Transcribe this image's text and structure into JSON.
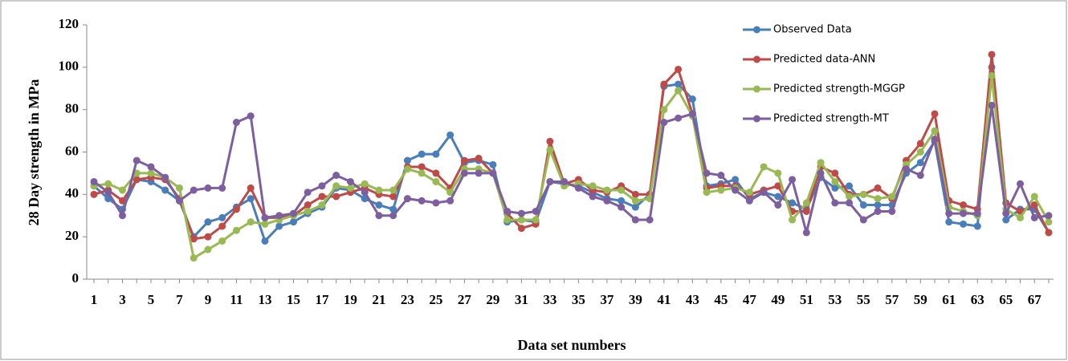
{
  "chart_data": {
    "type": "line",
    "y_label": "28 Day strength in MPa",
    "x_label": "Data set numbers",
    "categories": [
      1,
      null,
      3,
      null,
      5,
      null,
      7,
      null,
      9,
      null,
      11,
      null,
      13,
      null,
      15,
      null,
      17,
      null,
      19,
      null,
      21,
      null,
      23,
      null,
      25,
      null,
      27,
      null,
      29,
      null,
      31,
      null,
      33,
      null,
      35,
      null,
      37,
      null,
      39,
      null,
      41,
      null,
      43,
      null,
      45,
      null,
      47,
      null,
      49,
      null,
      51,
      null,
      53,
      null,
      55,
      null,
      57,
      null,
      59,
      null,
      61,
      null,
      63,
      null,
      65,
      null,
      67,
      null
    ],
    "ylim": [
      0,
      120
    ],
    "yticks": [
      0,
      20,
      40,
      60,
      80,
      100,
      120
    ],
    "series": [
      {
        "name": "Observed Data",
        "color": "#4a7ebb",
        "values": [
          44,
          38,
          33,
          47,
          46,
          42,
          37,
          20,
          27,
          29,
          34,
          38,
          18,
          25,
          27,
          31,
          34,
          43,
          42,
          38,
          35,
          33,
          56,
          59,
          59,
          68,
          55,
          56,
          54,
          27,
          28,
          27,
          46,
          45,
          44,
          41,
          38,
          37,
          34,
          40,
          91,
          92,
          85,
          44,
          45,
          47,
          38,
          41,
          39,
          36,
          33,
          48,
          43,
          44,
          35,
          35,
          35,
          50,
          55,
          65,
          27,
          26,
          25,
          100,
          28,
          33,
          33,
          22
        ]
      },
      {
        "name": "Predicted data-ANN",
        "color": "#be4b48",
        "values": [
          40,
          42,
          37,
          47,
          48,
          47,
          38,
          19,
          20,
          25,
          33,
          43,
          29,
          29,
          30,
          35,
          39,
          39,
          41,
          43,
          40,
          39,
          53,
          53,
          50,
          43,
          56,
          57,
          50,
          31,
          24,
          26,
          65,
          45,
          47,
          42,
          41,
          44,
          40,
          40,
          92,
          99,
          78,
          43,
          44,
          44,
          40,
          42,
          44,
          32,
          32,
          53,
          50,
          40,
          40,
          43,
          38,
          56,
          64,
          78,
          37,
          35,
          33,
          106,
          36,
          32,
          35,
          22
        ]
      },
      {
        "name": "Predicted strength-MGGP",
        "color": "#98b954",
        "values": [
          44,
          45,
          42,
          50,
          50,
          48,
          43,
          10,
          14,
          18,
          23,
          27,
          26,
          28,
          30,
          32,
          35,
          44,
          43,
          45,
          42,
          42,
          52,
          50,
          46,
          41,
          52,
          52,
          50,
          28,
          28,
          28,
          61,
          44,
          45,
          44,
          42,
          42,
          37,
          38,
          80,
          89,
          77,
          41,
          42,
          43,
          41,
          53,
          50,
          28,
          36,
          55,
          46,
          39,
          40,
          38,
          39,
          54,
          60,
          70,
          34,
          32,
          30,
          96,
          33,
          29,
          39,
          27
        ]
      },
      {
        "name": "Predicted strength-MT",
        "color": "#7d5fa0",
        "values": [
          46,
          41,
          30,
          56,
          53,
          48,
          37,
          42,
          43,
          43,
          74,
          77,
          29,
          30,
          31,
          41,
          44,
          49,
          46,
          41,
          30,
          30,
          38,
          37,
          36,
          37,
          50,
          50,
          50,
          32,
          31,
          32,
          46,
          46,
          43,
          39,
          37,
          34,
          28,
          28,
          74,
          76,
          78,
          50,
          49,
          42,
          37,
          41,
          35,
          47,
          22,
          50,
          36,
          36,
          28,
          32,
          32,
          52,
          49,
          66,
          31,
          31,
          31,
          82,
          31,
          45,
          29,
          30
        ]
      }
    ]
  }
}
